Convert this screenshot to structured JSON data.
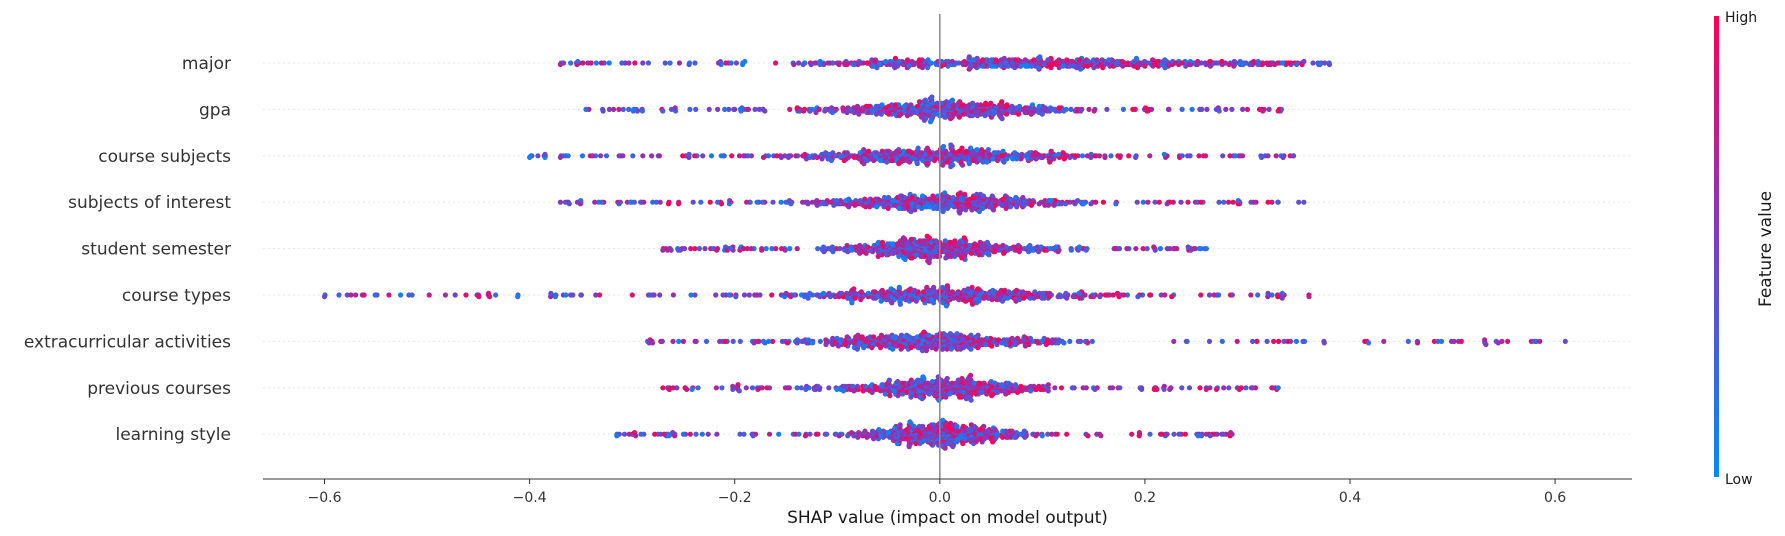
{
  "chart_data": {
    "type": "scatter",
    "subtype": "shap-beeswarm",
    "xlabel": "SHAP value (impact on model output)",
    "xlim": [
      -0.66,
      0.675
    ],
    "xticks": [
      -0.6,
      -0.4,
      -0.2,
      0.0,
      0.2,
      0.4,
      0.6
    ],
    "xtick_labels": [
      "−0.6",
      "−0.4",
      "−0.2",
      "0.0",
      "0.2",
      "0.4",
      "0.6"
    ],
    "features": [
      {
        "name": "major",
        "min": -0.37,
        "max": 0.38,
        "peak": 0.09,
        "spread": 0.11,
        "outliers": [
          -0.37,
          -0.36,
          -0.33,
          -0.31,
          0.32,
          0.34,
          0.38
        ]
      },
      {
        "name": "gpa",
        "min": -0.345,
        "max": 0.335,
        "peak": 0.0,
        "spread": 0.06,
        "outliers": [
          -0.345,
          -0.29,
          0.3,
          0.315,
          0.33
        ]
      },
      {
        "name": "course subjects",
        "min": -0.4,
        "max": 0.345,
        "peak": 0.0,
        "spread": 0.07,
        "outliers": [
          -0.4,
          -0.385,
          -0.325,
          0.32,
          0.345
        ]
      },
      {
        "name": "subjects of interest",
        "min": -0.37,
        "max": 0.355,
        "peak": 0.0,
        "spread": 0.06,
        "outliers": [
          -0.37,
          -0.33,
          -0.28,
          0.33,
          0.35,
          0.355
        ]
      },
      {
        "name": "student semester",
        "min": -0.27,
        "max": 0.26,
        "peak": 0.0,
        "spread": 0.05,
        "outliers": [
          -0.27,
          -0.255,
          0.245,
          0.26
        ]
      },
      {
        "name": "course types",
        "min": -0.6,
        "max": 0.36,
        "peak": 0.0,
        "spread": 0.07,
        "outliers": [
          -0.6,
          -0.44,
          -0.36,
          -0.35,
          0.31,
          0.32,
          0.36
        ]
      },
      {
        "name": "extracurricular activities",
        "min": -0.285,
        "max": 0.61,
        "peak": 0.0,
        "spread": 0.06,
        "outliers": [
          -0.285,
          -0.25,
          0.29,
          0.305,
          0.58,
          0.61
        ]
      },
      {
        "name": "previous courses",
        "min": -0.27,
        "max": 0.33,
        "peak": 0.0,
        "spread": 0.05,
        "outliers": [
          -0.27,
          -0.26,
          0.305,
          0.33
        ]
      },
      {
        "name": "learning style",
        "min": -0.315,
        "max": 0.285,
        "peak": 0.0,
        "spread": 0.04,
        "outliers": [
          -0.315,
          -0.25,
          0.26,
          0.285
        ]
      }
    ],
    "colorbar": {
      "title": "Feature value",
      "high_label": "High",
      "low_label": "Low",
      "high_color": "#ff0052",
      "mid_color": "#7a3ec7",
      "low_color": "#008bfb"
    },
    "zero_line": true,
    "grid": false
  }
}
